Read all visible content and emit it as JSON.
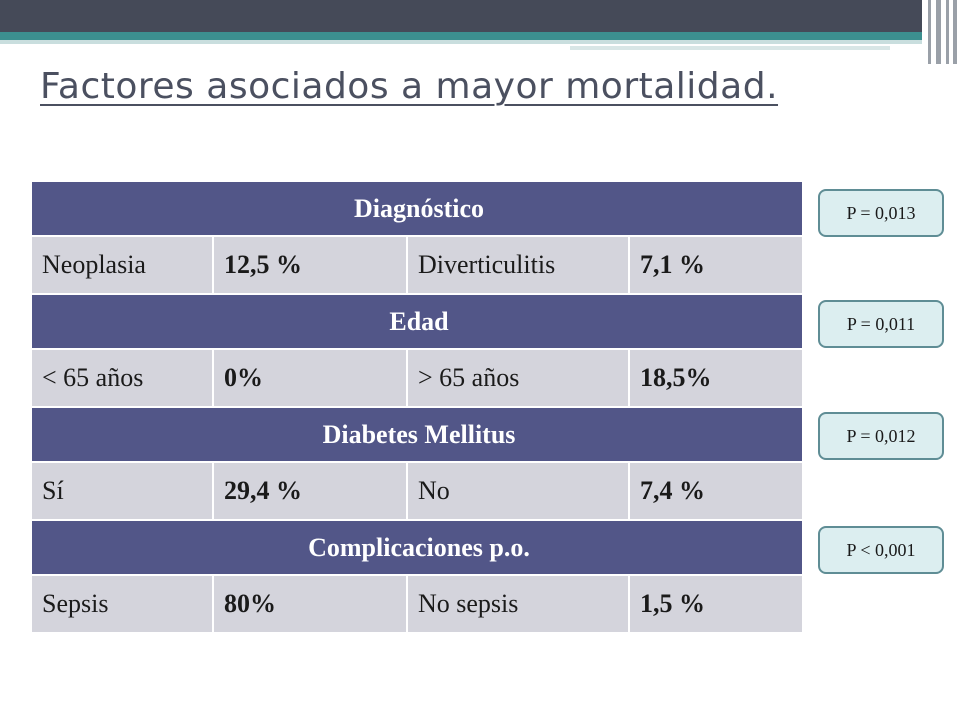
{
  "slide": {
    "title": "Factores asociados a mayor mortalidad."
  },
  "table": {
    "sections": [
      {
        "header": "Diagnóstico",
        "row": [
          "Neoplasia",
          "12,5 %",
          "Diverticulitis",
          "7,1 %"
        ]
      },
      {
        "header": "Edad",
        "row": [
          "< 65 años",
          "0%",
          "> 65 años",
          "18,5%"
        ]
      },
      {
        "header": "Diabetes Mellitus",
        "row": [
          "Sí",
          "29,4 %",
          "No",
          "7,4 %"
        ]
      },
      {
        "header": "Complicaciones p.o.",
        "row": [
          "Sepsis",
          "80%",
          "No sepsis",
          "1,5 %"
        ]
      }
    ]
  },
  "p_values": [
    "P = 0,013",
    "P = 0,011",
    "P = 0,012",
    "P < 0,001"
  ],
  "colors": {
    "header_fill": "#525688",
    "row_fill": "#d4d4dc",
    "title_text": "#4b5060",
    "p_box_fill": "#dceef0",
    "p_box_border": "#5f8d95",
    "top_band": "#454a58",
    "accent_teal": "#3c8f8f"
  }
}
